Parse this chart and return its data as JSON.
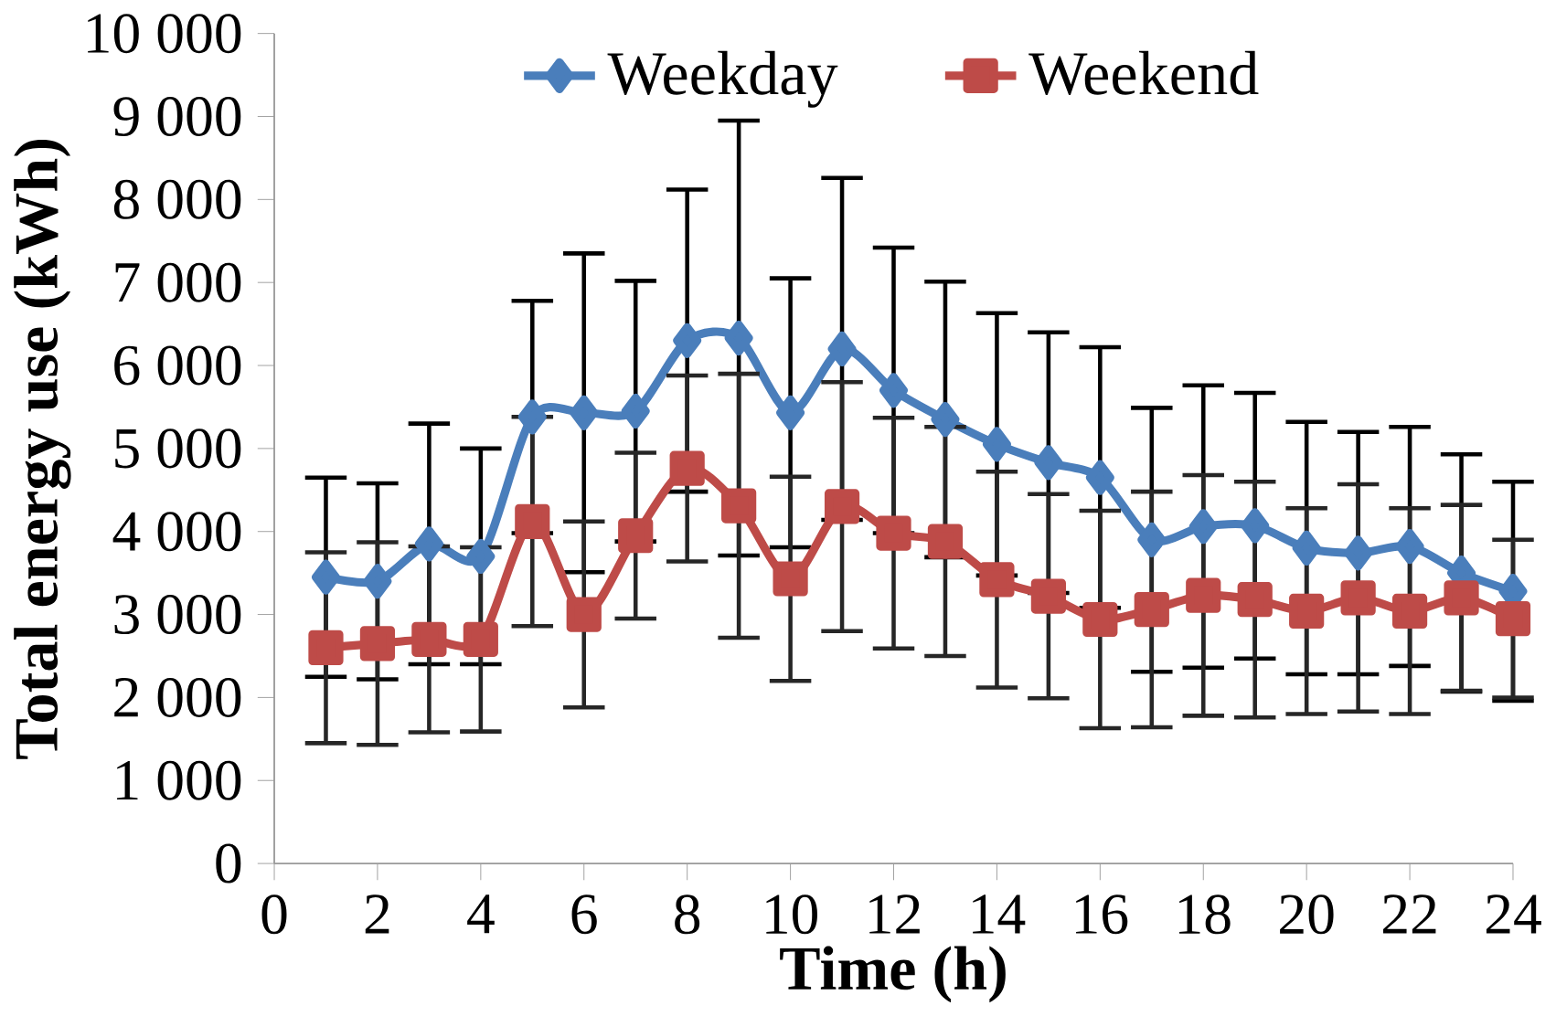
{
  "chart_data": {
    "type": "line",
    "xlabel": "Time (h)",
    "ylabel": "Total energy use (kWh)",
    "x": [
      1,
      2,
      3,
      4,
      5,
      6,
      7,
      8,
      9,
      10,
      11,
      12,
      13,
      14,
      15,
      16,
      17,
      18,
      19,
      20,
      21,
      22,
      23,
      24
    ],
    "series": [
      {
        "name": "Weekday",
        "color": "#4a7ebb",
        "marker": "diamond",
        "values": [
          3450,
          3400,
          3850,
          3700,
          5380,
          5430,
          5450,
          6300,
          6330,
          5430,
          6200,
          5700,
          5350,
          5050,
          4830,
          4650,
          3900,
          4060,
          4070,
          3800,
          3740,
          3820,
          3500,
          3280
        ],
        "errors": [
          1200,
          1180,
          1450,
          1300,
          1400,
          1920,
          1570,
          1820,
          2620,
          1620,
          2060,
          1720,
          1660,
          1580,
          1570,
          1570,
          1590,
          1700,
          1600,
          1520,
          1460,
          1440,
          1430,
          1320
        ]
      },
      {
        "name": "Weekend",
        "color": "#be4b48",
        "marker": "square",
        "values": [
          2600,
          2650,
          2700,
          2700,
          4120,
          3000,
          3950,
          4760,
          4310,
          3430,
          4300,
          3980,
          3880,
          3420,
          3220,
          2940,
          3060,
          3230,
          3180,
          3040,
          3200,
          3040,
          3200,
          2950
        ],
        "errors": [
          1150,
          1220,
          1120,
          1110,
          1260,
          1120,
          1000,
          1120,
          1590,
          1230,
          1500,
          1390,
          1380,
          1300,
          1230,
          1310,
          1420,
          1450,
          1420,
          1240,
          1370,
          1240,
          1120,
          950
        ]
      }
    ],
    "xlim": [
      0,
      24
    ],
    "ylim": [
      0,
      10000
    ],
    "xticks": [
      0,
      2,
      4,
      6,
      8,
      10,
      12,
      14,
      16,
      18,
      20,
      22,
      24
    ],
    "yticks": [
      0,
      {
        "value": 1000,
        "label": "1 000"
      },
      {
        "value": 2000,
        "label": "2 000"
      },
      {
        "value": 3000,
        "label": "3 000"
      },
      {
        "value": 4000,
        "label": "4 000"
      },
      {
        "value": 5000,
        "label": "5 000"
      },
      {
        "value": 6000,
        "label": "6 000"
      },
      {
        "value": 7000,
        "label": "7 000"
      },
      {
        "value": 8000,
        "label": "8 000"
      },
      {
        "value": 9000,
        "label": "9 000"
      },
      {
        "value": 10000,
        "label": "10 000"
      }
    ],
    "grid": false,
    "legend": "top"
  }
}
